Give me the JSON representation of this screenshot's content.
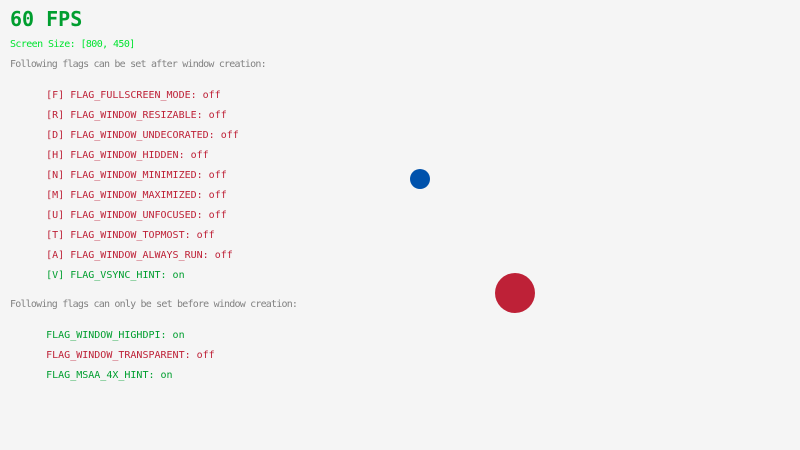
{
  "fps": {
    "text": "60 FPS",
    "color": "#009e2f"
  },
  "screen_size": {
    "text": "Screen Size: [800, 450]",
    "color": "#00e430"
  },
  "sections": [
    {
      "heading": "Following flags can be set after window creation:",
      "rows": [
        {
          "label": "[F] FLAG_FULLSCREEN_MODE:",
          "state": "off"
        },
        {
          "label": "[R] FLAG_WINDOW_RESIZABLE:",
          "state": "off"
        },
        {
          "label": "[D] FLAG_WINDOW_UNDECORATED:",
          "state": "off"
        },
        {
          "label": "[H] FLAG_WINDOW_HIDDEN:",
          "state": "off"
        },
        {
          "label": "[N] FLAG_WINDOW_MINIMIZED:",
          "state": "off"
        },
        {
          "label": "[M] FLAG_WINDOW_MAXIMIZED:",
          "state": "off"
        },
        {
          "label": "[U] FLAG_WINDOW_UNFOCUSED:",
          "state": "off"
        },
        {
          "label": "[T] FLAG_WINDOW_TOPMOST:",
          "state": "off"
        },
        {
          "label": "[A] FLAG_WINDOW_ALWAYS_RUN:",
          "state": "off"
        },
        {
          "label": "[V] FLAG_VSYNC_HINT:",
          "state": "on"
        }
      ]
    },
    {
      "heading": "Following flags can only be set before window creation:",
      "rows": [
        {
          "label": "FLAG_WINDOW_HIGHDPI:",
          "state": "on"
        },
        {
          "label": "FLAG_WINDOW_TRANSPARENT:",
          "state": "off"
        },
        {
          "label": "FLAG_MSAA_4X_HINT:",
          "state": "on"
        }
      ]
    }
  ],
  "shapes": {
    "ball": {
      "color": "#0052ac"
    },
    "circle": {
      "color": "#be2137"
    }
  },
  "colors": {
    "background": "#f5f5f5",
    "heading_gray": "#828282",
    "flag_off_maroon": "#be2137",
    "flag_on_lime": "#009e2f",
    "fps_lime": "#009e2f",
    "screen_size_green": "#00e430"
  }
}
